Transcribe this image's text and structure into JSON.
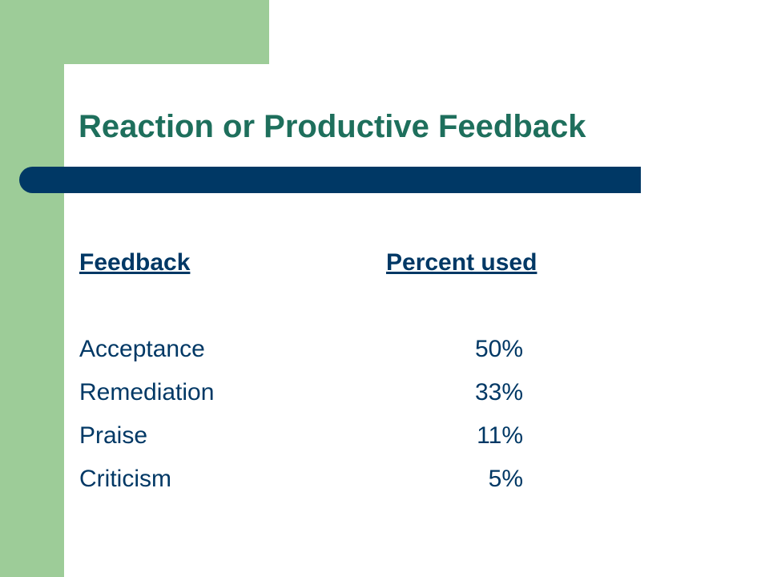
{
  "slide": {
    "title": "Reaction or Productive Feedback",
    "headers": {
      "feedback": "Feedback",
      "percent": "Percent used"
    },
    "rows": [
      {
        "label": "Acceptance",
        "percent": "50%"
      },
      {
        "label": "Remediation",
        "percent": "33%"
      },
      {
        "label": "Praise",
        "percent": "11%"
      },
      {
        "label": "Criticism",
        "percent": "5%"
      }
    ]
  },
  "colors": {
    "accent_green": "#9dcc98",
    "title_teal": "#1e6f5c",
    "navy": "#003865",
    "background": "#ffffff"
  }
}
